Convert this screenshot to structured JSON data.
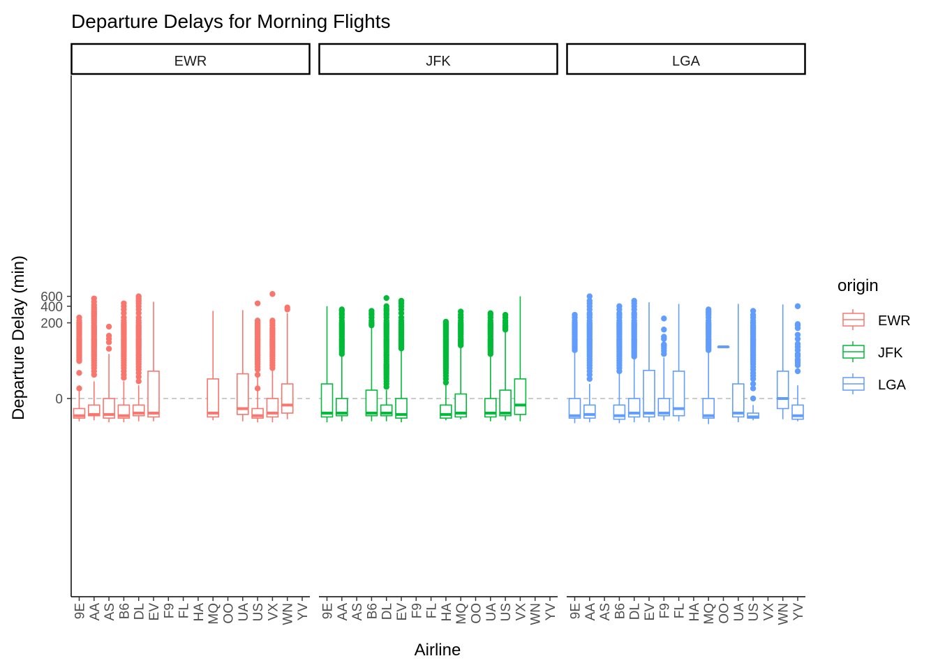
{
  "chart_data": {
    "type": "boxplot",
    "title": "Departure Delays for Morning Flights",
    "xlabel": "Airline",
    "ylabel": "Departure Delay (min)",
    "y_scale": "pseudo-log (log-like above 0)",
    "y_ticks": [
      {
        "label": "0",
        "value": 0
      },
      {
        "label": "200",
        "value": 200
      },
      {
        "label": "400",
        "value": 400
      },
      {
        "label": "600",
        "value": 600
      }
    ],
    "reference_line": {
      "value": 0,
      "style": "dashed grey"
    },
    "categories": [
      "9E",
      "AA",
      "AS",
      "B6",
      "DL",
      "EV",
      "F9",
      "FL",
      "HA",
      "MQ",
      "OO",
      "UA",
      "US",
      "VX",
      "WN",
      "YV"
    ],
    "legend": {
      "title": "origin",
      "position": "right",
      "entries": [
        "EWR",
        "JFK",
        "LGA"
      ]
    },
    "colors": {
      "EWR": "#F8766D",
      "JFK": "#00BA38",
      "LGA": "#619CFF"
    },
    "panels": [
      {
        "name": "EWR",
        "boxes": [
          {
            "carrier": "9E",
            "lo": -15,
            "q1": -12,
            "med": -10,
            "q3": -5,
            "hi": 7,
            "outliers": [
              5,
              18,
              35,
              38,
              42,
              45,
              48,
              52,
              55,
              58,
              62,
              66,
              70,
              75,
              80,
              85,
              90,
              95,
              100,
              110,
              120,
              130,
              140,
              150,
              160,
              170,
              180,
              190,
              200,
              220,
              250
            ]
          },
          {
            "carrier": "AA",
            "lo": -14,
            "q1": -10,
            "med": -9,
            "q3": -3,
            "hi": 10,
            "outliers": [
              16,
              20,
              24,
              28,
              32,
              36,
              40,
              45,
              50,
              55,
              60,
              65,
              70,
              75,
              80,
              85,
              90,
              95,
              100,
              110,
              120,
              130,
              140,
              150,
              160,
              170,
              180,
              200,
              220,
              240,
              260,
              280,
              300,
              320,
              350,
              380,
              420,
              480,
              550
            ]
          },
          {
            "carrier": "AS",
            "lo": -16,
            "q1": -12,
            "med": -9,
            "q3": 0,
            "hi": 50,
            "outliers": [
              64,
              86,
              100,
              115,
              170
            ]
          },
          {
            "carrier": "B6",
            "lo": -16,
            "q1": -12,
            "med": -10,
            "q3": -3,
            "hi": 10,
            "outliers": [
              13,
              16,
              20,
              24,
              28,
              32,
              36,
              40,
              45,
              50,
              55,
              60,
              65,
              70,
              75,
              80,
              85,
              90,
              95,
              100,
              110,
              120,
              130,
              140,
              150,
              160,
              170,
              180,
              190,
              200,
              220,
              250,
              300,
              350,
              400,
              450
            ]
          },
          {
            "carrier": "DL",
            "lo": -15,
            "q1": -10,
            "med": -8,
            "q3": -3,
            "hi": 7,
            "outliers": [
              10,
              14,
              18,
              22,
              26,
              30,
              34,
              38,
              42,
              46,
              50,
              55,
              60,
              65,
              70,
              75,
              80,
              85,
              90,
              95,
              100,
              110,
              120,
              130,
              140,
              150,
              160,
              170,
              180,
              200,
              220,
              250,
              300,
              350,
              400,
              450,
              500,
              550,
              600
            ]
          },
          {
            "carrier": "EV",
            "lo": -15,
            "q1": -11,
            "med": -8,
            "q3": 20,
            "hi": 480,
            "outliers": []
          },
          {
            "carrier": "MQ",
            "lo": -14,
            "q1": -11,
            "med": -8,
            "q3": 12,
            "hi": 330,
            "outliers": []
          },
          {
            "carrier": "UA",
            "lo": -15,
            "q1": -9,
            "med": -5,
            "q3": 17,
            "hi": 340,
            "outliers": []
          },
          {
            "carrier": "US",
            "lo": -16,
            "q1": -12,
            "med": -10,
            "q3": -5,
            "hi": 16,
            "outliers": [
              5,
              16,
              22,
              26,
              30,
              34,
              38,
              42,
              46,
              50,
              55,
              60,
              65,
              70,
              75,
              80,
              85,
              90,
              95,
              100,
              110,
              120,
              130,
              140,
              150,
              160,
              170,
              180,
              190,
              200,
              220,
              450
            ]
          },
          {
            "carrier": "VX",
            "lo": -16,
            "q1": -11,
            "med": -8,
            "q3": 0,
            "hi": 22,
            "outliers": [
              24,
              28,
              32,
              36,
              40,
              45,
              50,
              55,
              60,
              65,
              70,
              75,
              80,
              85,
              90,
              95,
              100,
              110,
              120,
              130,
              140,
              150,
              160,
              180,
              200,
              220,
              660
            ]
          },
          {
            "carrier": "WN",
            "lo": -13,
            "q1": -8,
            "med": -3,
            "q3": 8,
            "hi": 300,
            "outliers": [
              350,
              380
            ]
          }
        ]
      },
      {
        "name": "JFK",
        "boxes": [
          {
            "carrier": "9E",
            "lo": -16,
            "q1": -11,
            "med": -8,
            "q3": 8,
            "hi": 400,
            "outliers": []
          },
          {
            "carrier": "AA",
            "lo": -15,
            "q1": -10,
            "med": -8,
            "q3": 0,
            "hi": 48,
            "outliers": [
              50,
              55,
              60,
              65,
              70,
              75,
              80,
              85,
              90,
              95,
              100,
              110,
              120,
              130,
              140,
              150,
              160,
              170,
              180,
              190,
              200,
              220,
              250,
              280,
              300,
              330,
              350
            ]
          },
          {
            "carrier": "B6",
            "lo": -15,
            "q1": -10,
            "med": -8,
            "q3": 4,
            "hi": 170,
            "outliers": [
              180,
              190,
              200,
              220,
              250,
              280,
              300,
              330
            ]
          },
          {
            "carrier": "DL",
            "lo": -15,
            "q1": -10,
            "med": -8,
            "q3": -3,
            "hi": 4,
            "outliers": [
              6,
              8,
              10,
              12,
              14,
              16,
              18,
              20,
              22,
              24,
              26,
              28,
              30,
              34,
              38,
              42,
              46,
              50,
              55,
              60,
              65,
              70,
              75,
              80,
              85,
              90,
              95,
              100,
              110,
              120,
              130,
              140,
              150,
              160,
              170,
              180,
              190,
              200,
              220,
              250,
              280,
              300,
              330,
              360,
              400,
              560
            ]
          },
          {
            "carrier": "EV",
            "lo": -16,
            "q1": -12,
            "med": -9,
            "q3": 0,
            "hi": 60,
            "outliers": [
              65,
              70,
              75,
              80,
              85,
              90,
              95,
              100,
              110,
              120,
              130,
              140,
              150,
              160,
              170,
              180,
              190,
              200,
              220,
              250,
              300,
              350,
              400,
              450,
              500
            ]
          },
          {
            "carrier": "HA",
            "lo": -14,
            "q1": -12,
            "med": -9,
            "q3": -3,
            "hi": 7,
            "outliers": [
              9,
              12,
              15,
              18,
              21,
              24,
              27,
              30,
              33,
              36,
              40,
              44,
              48,
              52,
              56,
              60,
              65,
              70,
              75,
              80,
              85,
              90,
              95,
              100,
              110,
              120,
              130,
              140,
              150,
              160,
              170,
              180,
              190,
              200,
              210
            ]
          },
          {
            "carrier": "MQ",
            "lo": -13,
            "q1": -11,
            "med": -8,
            "q3": 2,
            "hi": 70,
            "outliers": [
              75,
              80,
              85,
              90,
              95,
              100,
              110,
              120,
              130,
              140,
              150,
              160,
              170,
              180,
              190,
              200,
              220,
              250,
              280,
              320
            ]
          },
          {
            "carrier": "UA",
            "lo": -15,
            "q1": -11,
            "med": -8,
            "q3": 0,
            "hi": 48,
            "outliers": [
              50,
              55,
              60,
              65,
              70,
              75,
              80,
              85,
              90,
              95,
              100,
              110,
              120,
              130,
              140,
              150,
              160,
              170,
              180,
              190,
              200,
              220,
              250,
              280,
              300
            ]
          },
          {
            "carrier": "US",
            "lo": -14,
            "q1": -10,
            "med": -8,
            "q3": 4,
            "hi": 140,
            "outliers": [
              150,
              160,
              170,
              180,
              200,
              220,
              250,
              280
            ]
          },
          {
            "carrier": "VX",
            "lo": -15,
            "q1": -9,
            "med": -3,
            "q3": 12,
            "hi": 600,
            "outliers": []
          }
        ]
      },
      {
        "name": "LGA",
        "boxes": [
          {
            "carrier": "9E",
            "lo": -17,
            "q1": -12,
            "med": -10,
            "q3": 0,
            "hi": 55,
            "outliers": [
              60,
              65,
              70,
              75,
              80,
              85,
              90,
              95,
              100,
              110,
              120,
              130,
              140,
              150,
              160,
              170,
              180,
              190,
              200,
              220,
              250,
              280
            ]
          },
          {
            "carrier": "AA",
            "lo": -16,
            "q1": -12,
            "med": -9,
            "q3": -3,
            "hi": 8,
            "outliers": [
              12,
              16,
              20,
              24,
              28,
              32,
              36,
              40,
              45,
              50,
              55,
              60,
              65,
              70,
              75,
              80,
              85,
              90,
              95,
              100,
              110,
              120,
              130,
              140,
              150,
              160,
              170,
              180,
              190,
              200,
              220,
              250,
              280,
              300,
              350,
              400,
              450,
              500,
              600
            ]
          },
          {
            "carrier": "B6",
            "lo": -17,
            "q1": -13,
            "med": -10,
            "q3": -3,
            "hi": 18,
            "outliers": [
              20,
              24,
              28,
              32,
              36,
              40,
              45,
              50,
              55,
              60,
              65,
              70,
              75,
              80,
              85,
              90,
              95,
              100,
              110,
              120,
              130,
              140,
              150,
              160,
              170,
              180,
              190,
              200,
              220,
              250,
              280,
              300,
              350,
              400
            ]
          },
          {
            "carrier": "DL",
            "lo": -16,
            "q1": -11,
            "med": -8,
            "q3": 0,
            "hi": 40,
            "outliers": [
              44,
              48,
              52,
              56,
              60,
              65,
              70,
              75,
              80,
              85,
              90,
              95,
              100,
              110,
              120,
              130,
              140,
              150,
              160,
              170,
              180,
              190,
              200,
              220,
              250,
              280,
              300,
              350,
              400,
              450,
              500
            ]
          },
          {
            "carrier": "EV",
            "lo": -16,
            "q1": -11,
            "med": -8,
            "q3": 21,
            "hi": 470,
            "outliers": []
          },
          {
            "carrier": "F9",
            "lo": -14,
            "q1": -10,
            "med": -8,
            "q3": 0,
            "hi": 42,
            "outliers": [
              50,
              58,
              66,
              73,
              78,
              100,
              110,
              150,
              240
            ]
          },
          {
            "carrier": "FL",
            "lo": -15,
            "q1": -10,
            "med": -5,
            "q3": 20,
            "hi": 440,
            "outliers": []
          },
          {
            "carrier": "MQ",
            "lo": -18,
            "q1": -12,
            "med": -10,
            "q3": 0,
            "hi": 55,
            "outliers": [
              60,
              65,
              70,
              75,
              80,
              85,
              90,
              95,
              100,
              110,
              120,
              130,
              140,
              150,
              160,
              170,
              180,
              190,
              200,
              220,
              250,
              280,
              300,
              320,
              350
            ]
          },
          {
            "carrier": "OO",
            "lo": 70,
            "q1": 70,
            "med": 70,
            "q3": 70,
            "hi": 70,
            "outliers": []
          },
          {
            "carrier": "UA",
            "lo": -16,
            "q1": -11,
            "med": -8,
            "q3": 8,
            "hi": 440,
            "outliers": []
          },
          {
            "carrier": "US",
            "lo": -14,
            "q1": -12,
            "med": -11,
            "q3": -8,
            "hi": -3,
            "outliers": [
              0,
              5,
              8,
              12,
              15,
              18,
              22,
              26,
              30,
              34,
              38,
              42,
              46,
              50,
              55,
              60,
              65,
              70,
              75,
              80,
              85,
              90,
              95,
              100,
              110,
              120,
              130,
              140,
              150,
              160,
              170,
              180,
              200,
              220,
              250,
              280,
              330
            ]
          },
          {
            "carrier": "WN",
            "lo": -13,
            "q1": -5,
            "med": 0,
            "q3": 20,
            "hi": 430,
            "outliers": []
          },
          {
            "carrier": "YV",
            "lo": -15,
            "q1": -13,
            "med": -10,
            "q3": -3,
            "hi": 7,
            "outliers": [
              20,
              28,
              32,
              35,
              38,
              45,
              50,
              60,
              70,
              80,
              100,
              120,
              160,
              180,
              190,
              400
            ]
          }
        ]
      }
    ]
  }
}
